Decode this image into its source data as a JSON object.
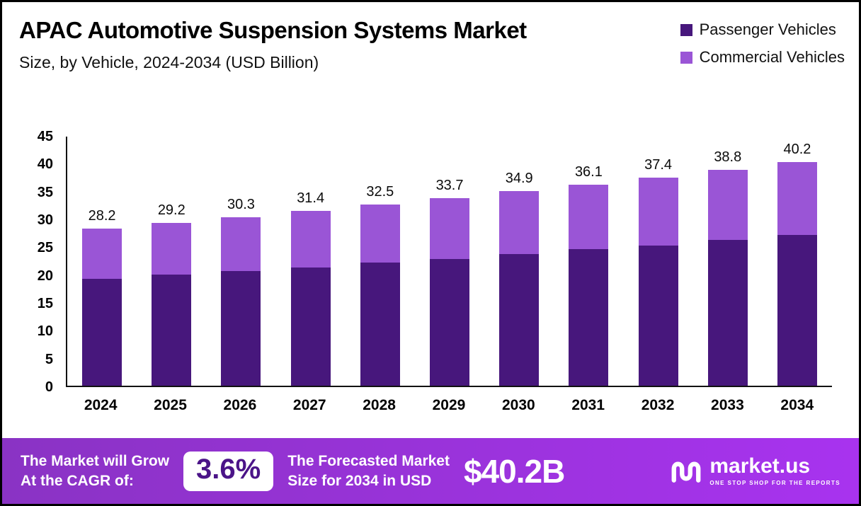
{
  "header": {
    "title": "APAC Automotive Suspension Systems Market",
    "subtitle": "Size, by Vehicle, 2024-2034 (USD Billion)"
  },
  "legend": [
    {
      "label": "Passenger Vehicles",
      "color": "#47177c"
    },
    {
      "label": "Commercial Vehicles",
      "color": "#9a55d6"
    }
  ],
  "chart_data": {
    "type": "bar",
    "stacked": true,
    "title": "APAC Automotive Suspension Systems Market Size, by Vehicle, 2024-2034 (USD Billion)",
    "categories": [
      "2024",
      "2025",
      "2026",
      "2027",
      "2028",
      "2029",
      "2030",
      "2031",
      "2032",
      "2033",
      "2034"
    ],
    "series": [
      {
        "name": "Passenger Vehicles",
        "color": "#47177c",
        "values": [
          19.2,
          19.9,
          20.6,
          21.2,
          22.1,
          22.7,
          23.6,
          24.5,
          25.2,
          26.2,
          27.1
        ]
      },
      {
        "name": "Commercial Vehicles",
        "color": "#9a55d6",
        "values": [
          9.0,
          9.3,
          9.7,
          10.2,
          10.4,
          11.0,
          11.3,
          11.6,
          12.2,
          12.6,
          13.1
        ]
      }
    ],
    "totals": [
      28.2,
      29.2,
      30.3,
      31.4,
      32.5,
      33.7,
      34.9,
      36.1,
      37.4,
      38.8,
      40.2
    ],
    "ylim": [
      0,
      45
    ],
    "yticks": [
      0,
      5,
      10,
      15,
      20,
      25,
      30,
      35,
      40,
      45
    ],
    "grid": false,
    "legend_position": "top-right"
  },
  "footer": {
    "cagr_label": "The Market will Grow\nAt the CAGR of:",
    "cagr_value": "3.6%",
    "forecast_label": "The Forecasted Market\nSize for 2034 in USD",
    "forecast_value": "$40.2B",
    "brand": "market.us",
    "brand_tagline": "ONE STOP SHOP FOR THE REPORTS"
  },
  "colors": {
    "passenger": "#47177c",
    "commercial": "#9a55d6",
    "footer_gradient_start": "#8a33c4",
    "footer_gradient_end": "#a833ef",
    "cagr_badge_text": "#4b1488"
  }
}
